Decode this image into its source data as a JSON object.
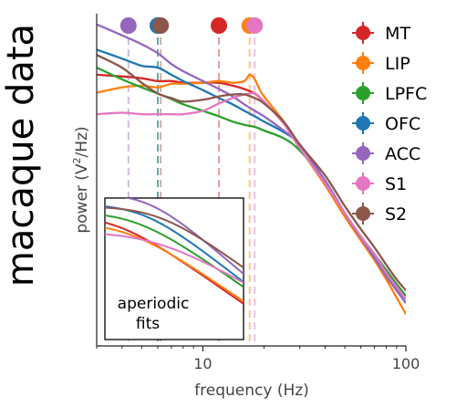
{
  "side_title": "macaque data",
  "chart_data": {
    "type": "line",
    "xlabel": "frequency (Hz)",
    "ylabel_pre": "power (V",
    "ylabel_sup": "2",
    "ylabel_post": "/Hz)",
    "xscale": "log",
    "yscale": "log",
    "xlim": [
      3,
      100
    ],
    "ylim": [
      0.02,
      100
    ],
    "xticks": [
      10,
      100
    ],
    "xtick_labels": [
      "10",
      "100"
    ],
    "grid": false,
    "legend_position": "right",
    "series": [
      {
        "name": "MT",
        "color": "#d62728",
        "peak_hz": 12,
        "points": [
          [
            3,
            20.9
          ],
          [
            4,
            20.0
          ],
          [
            5,
            19.1
          ],
          [
            6,
            17.8
          ],
          [
            7,
            17.8
          ],
          [
            8,
            17.0
          ],
          [
            9,
            17.0
          ],
          [
            10,
            17.0
          ],
          [
            12,
            17.0
          ],
          [
            14,
            15.8
          ],
          [
            16,
            14.5
          ],
          [
            18,
            12.9
          ],
          [
            20,
            10.5
          ],
          [
            25,
            6.0
          ],
          [
            30,
            3.2
          ],
          [
            40,
            1.29
          ],
          [
            50,
            0.6
          ],
          [
            60,
            0.33
          ],
          [
            70,
            0.21
          ],
          [
            80,
            0.13
          ],
          [
            90,
            0.085
          ],
          [
            100,
            0.06
          ]
        ]
      },
      {
        "name": "LIP",
        "color": "#ff7f0e",
        "peak_hz": 17,
        "points": [
          [
            3,
            13.2
          ],
          [
            4,
            15.1
          ],
          [
            5,
            15.8
          ],
          [
            6,
            15.1
          ],
          [
            7,
            16.6
          ],
          [
            8,
            16.6
          ],
          [
            10,
            17.0
          ],
          [
            12,
            17.8
          ],
          [
            14,
            17.0
          ],
          [
            16,
            17.8
          ],
          [
            17,
            20.9
          ],
          [
            18,
            18.6
          ],
          [
            19,
            14.5
          ],
          [
            20,
            12.0
          ],
          [
            25,
            6.3
          ],
          [
            30,
            3.2
          ],
          [
            40,
            1.23
          ],
          [
            50,
            0.55
          ],
          [
            60,
            0.3
          ],
          [
            70,
            0.18
          ],
          [
            80,
            0.11
          ],
          [
            90,
            0.069
          ],
          [
            100,
            0.045
          ]
        ]
      },
      {
        "name": "LPFC",
        "color": "#2ca02c",
        "peak_hz": 6,
        "points": [
          [
            3,
            25.1
          ],
          [
            4,
            18.6
          ],
          [
            5,
            15.1
          ],
          [
            6,
            12.9
          ],
          [
            7,
            11.2
          ],
          [
            8,
            9.8
          ],
          [
            10,
            8.3
          ],
          [
            12,
            7.2
          ],
          [
            14,
            6.3
          ],
          [
            16,
            5.8
          ],
          [
            18,
            5.5
          ],
          [
            20,
            5.0
          ],
          [
            25,
            4.1
          ],
          [
            30,
            3.0
          ],
          [
            40,
            1.38
          ],
          [
            50,
            0.6
          ],
          [
            60,
            0.33
          ],
          [
            70,
            0.21
          ],
          [
            80,
            0.14
          ],
          [
            90,
            0.098
          ],
          [
            100,
            0.072
          ]
        ]
      },
      {
        "name": "OFC",
        "color": "#1f77b4",
        "peak_hz": 6,
        "points": [
          [
            3,
            39.8
          ],
          [
            4,
            31.6
          ],
          [
            5,
            26.3
          ],
          [
            6,
            25.1
          ],
          [
            7,
            20.9
          ],
          [
            8,
            17.8
          ],
          [
            10,
            14.1
          ],
          [
            12,
            11.5
          ],
          [
            14,
            9.8
          ],
          [
            16,
            8.3
          ],
          [
            18,
            7.2
          ],
          [
            20,
            6.3
          ],
          [
            25,
            4.8
          ],
          [
            30,
            3.5
          ],
          [
            40,
            1.38
          ],
          [
            50,
            0.6
          ],
          [
            60,
            0.32
          ],
          [
            70,
            0.2
          ],
          [
            80,
            0.12
          ],
          [
            90,
            0.083
          ],
          [
            100,
            0.06
          ]
        ]
      },
      {
        "name": "ACC",
        "color": "#9467bd",
        "peak_hz": 4.3,
        "points": [
          [
            3,
            75.9
          ],
          [
            4,
            57.5
          ],
          [
            5,
            45.7
          ],
          [
            6,
            36.3
          ],
          [
            7,
            27.5
          ],
          [
            8,
            22.9
          ],
          [
            10,
            17.8
          ],
          [
            12,
            14.5
          ],
          [
            14,
            12.0
          ],
          [
            16,
            9.8
          ],
          [
            18,
            8.3
          ],
          [
            20,
            7.2
          ],
          [
            25,
            5.0
          ],
          [
            30,
            3.5
          ],
          [
            40,
            1.38
          ],
          [
            50,
            0.6
          ],
          [
            60,
            0.32
          ],
          [
            70,
            0.19
          ],
          [
            80,
            0.12
          ],
          [
            90,
            0.083
          ],
          [
            100,
            0.06
          ]
        ]
      },
      {
        "name": "S1",
        "color": "#e377c2",
        "peak_hz": 18,
        "points": [
          [
            3,
            7.6
          ],
          [
            4,
            7.9
          ],
          [
            5,
            7.6
          ],
          [
            6,
            7.6
          ],
          [
            7,
            7.6
          ],
          [
            8,
            7.6
          ],
          [
            10,
            8.3
          ],
          [
            12,
            10.0
          ],
          [
            14,
            11.5
          ],
          [
            16,
            12.6
          ],
          [
            18,
            12.9
          ],
          [
            20,
            10.5
          ],
          [
            25,
            6.0
          ],
          [
            30,
            3.2
          ],
          [
            40,
            1.29
          ],
          [
            50,
            0.6
          ],
          [
            60,
            0.33
          ],
          [
            70,
            0.21
          ],
          [
            80,
            0.13
          ],
          [
            90,
            0.091
          ],
          [
            100,
            0.066
          ]
        ]
      },
      {
        "name": "S2",
        "color": "#8c564b",
        "peak_hz": 6.2,
        "points": [
          [
            3,
            34.7
          ],
          [
            4,
            25.1
          ],
          [
            5,
            17.0
          ],
          [
            6,
            12.9
          ],
          [
            7,
            11.5
          ],
          [
            8,
            10.5
          ],
          [
            10,
            11.0
          ],
          [
            12,
            12.0
          ],
          [
            14,
            12.6
          ],
          [
            16,
            12.6
          ],
          [
            18,
            11.5
          ],
          [
            20,
            10.0
          ],
          [
            25,
            6.3
          ],
          [
            30,
            3.5
          ],
          [
            40,
            1.58
          ],
          [
            50,
            0.72
          ],
          [
            60,
            0.4
          ],
          [
            70,
            0.25
          ],
          [
            80,
            0.16
          ],
          [
            90,
            0.11
          ],
          [
            100,
            0.083
          ]
        ]
      }
    ],
    "inset": {
      "label": "aperiodic fits",
      "label_lines": [
        "aperiodic",
        "fits"
      ]
    }
  }
}
